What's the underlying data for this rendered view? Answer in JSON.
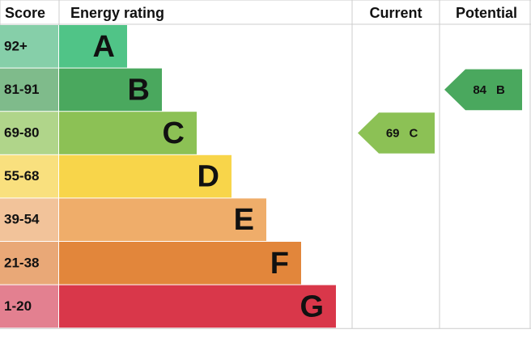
{
  "header": {
    "score": "Score",
    "rating": "Energy rating",
    "current": "Current",
    "potential": "Potential"
  },
  "bands": [
    {
      "score": "92+",
      "letter": "A",
      "color": "#50c487",
      "score_color": "#86cfa9"
    },
    {
      "score": "81-91",
      "letter": "B",
      "color": "#4aa85e",
      "score_color": "#7fbb8b"
    },
    {
      "score": "69-80",
      "letter": "C",
      "color": "#8cc155",
      "score_color": "#b0d58a"
    },
    {
      "score": "55-68",
      "letter": "D",
      "color": "#f8d54a",
      "score_color": "#f9e07e"
    },
    {
      "score": "39-54",
      "letter": "E",
      "color": "#efad6a",
      "score_color": "#f2c39a"
    },
    {
      "score": "21-38",
      "letter": "F",
      "color": "#e2863b",
      "score_color": "#e9a877"
    },
    {
      "score": "1-20",
      "letter": "G",
      "color": "#d9374a",
      "score_color": "#e38090"
    }
  ],
  "current": {
    "value": 69,
    "letter": "C"
  },
  "potential": {
    "value": 84,
    "letter": "B"
  }
}
